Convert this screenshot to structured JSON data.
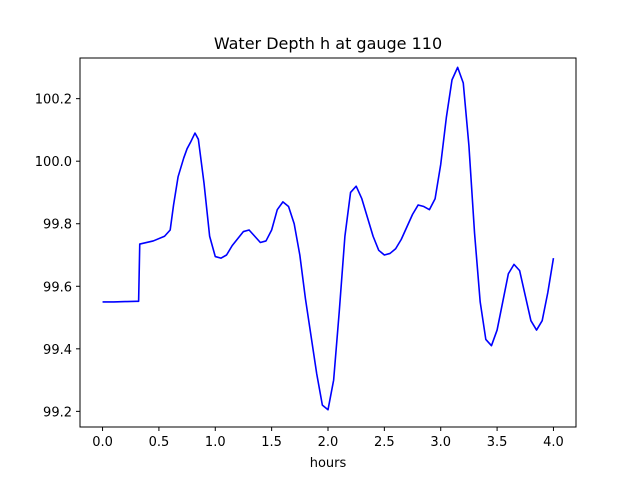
{
  "chart_data": {
    "type": "line",
    "title": "Water Depth h at gauge 110",
    "xlabel": "hours",
    "ylabel": "",
    "xlim": [
      -0.2,
      4.2
    ],
    "ylim": [
      99.15,
      100.33
    ],
    "xticks": [
      0.0,
      0.5,
      1.0,
      1.5,
      2.0,
      2.5,
      3.0,
      3.5,
      4.0
    ],
    "xtick_labels": [
      "0.0",
      "0.5",
      "1.0",
      "1.5",
      "2.0",
      "2.5",
      "3.0",
      "3.5",
      "4.0"
    ],
    "yticks": [
      99.2,
      99.4,
      99.6,
      99.8,
      100.0,
      100.2
    ],
    "ytick_labels": [
      "99.2",
      "99.4",
      "99.6",
      "99.8",
      "100.0",
      "100.2"
    ],
    "grid": false,
    "series": [
      {
        "color": "#0000ff",
        "x": [
          0.0,
          0.1,
          0.2,
          0.3,
          0.32,
          0.33,
          0.45,
          0.55,
          0.6,
          0.63,
          0.67,
          0.72,
          0.75,
          0.78,
          0.82,
          0.85,
          0.9,
          0.95,
          1.0,
          1.05,
          1.1,
          1.15,
          1.25,
          1.3,
          1.35,
          1.4,
          1.45,
          1.5,
          1.55,
          1.6,
          1.65,
          1.7,
          1.75,
          1.8,
          1.9,
          1.95,
          2.0,
          2.05,
          2.1,
          2.15,
          2.2,
          2.25,
          2.3,
          2.35,
          2.4,
          2.45,
          2.5,
          2.55,
          2.6,
          2.65,
          2.7,
          2.75,
          2.8,
          2.85,
          2.9,
          2.95,
          3.0,
          3.05,
          3.1,
          3.15,
          3.2,
          3.25,
          3.3,
          3.35,
          3.4,
          3.45,
          3.5,
          3.55,
          3.6,
          3.65,
          3.7,
          3.75,
          3.8,
          3.85,
          3.9,
          3.95,
          4.0
        ],
        "y": [
          99.55,
          99.55,
          99.551,
          99.552,
          99.552,
          99.735,
          99.745,
          99.76,
          99.78,
          99.86,
          99.95,
          100.01,
          100.04,
          100.06,
          100.09,
          100.07,
          99.93,
          99.76,
          99.695,
          99.69,
          99.7,
          99.73,
          99.775,
          99.78,
          99.76,
          99.74,
          99.745,
          99.78,
          99.845,
          99.87,
          99.855,
          99.8,
          99.7,
          99.56,
          99.32,
          99.22,
          99.205,
          99.3,
          99.52,
          99.76,
          99.9,
          99.92,
          99.88,
          99.82,
          99.76,
          99.715,
          99.7,
          99.705,
          99.72,
          99.75,
          99.79,
          99.83,
          99.86,
          99.855,
          99.845,
          99.88,
          99.99,
          100.14,
          100.26,
          100.3,
          100.25,
          100.05,
          99.77,
          99.55,
          99.43,
          99.41,
          99.46,
          99.55,
          99.64,
          99.67,
          99.65,
          99.57,
          99.49,
          99.46,
          99.49,
          99.58,
          99.69
        ]
      }
    ]
  }
}
